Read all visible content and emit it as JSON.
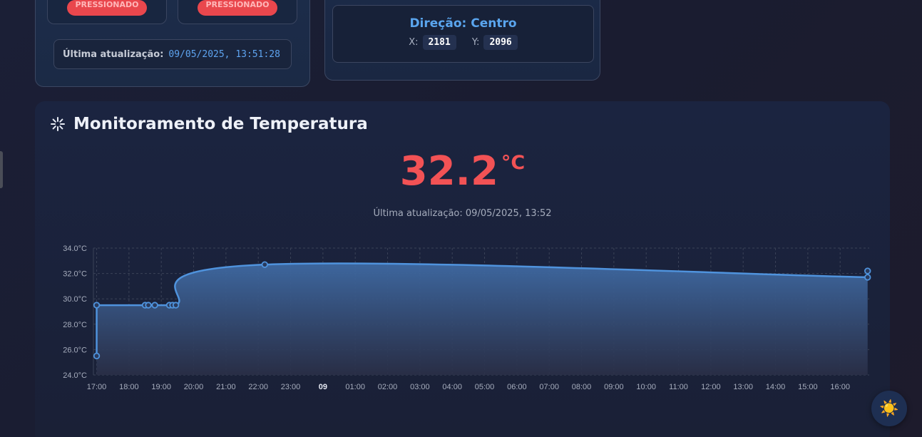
{
  "buttons_card": {
    "button_1_status": "PRESSIONADO",
    "button_2_status": "PRESSIONADO",
    "last_update_label": "Última atualização:",
    "last_update_value": "09/05/2025, 13:51:28"
  },
  "joystick_card": {
    "direction": "Direção: Centro",
    "x_label": "X:",
    "x_value": "2181",
    "y_label": "Y:",
    "y_value": "2096"
  },
  "temperature_card": {
    "title": "Monitoramento de Temperatura",
    "title_icon": "loader-icon",
    "current_value": "32.2",
    "unit": "°C",
    "last_update": "Última atualização: 09/05/2025, 13:52"
  },
  "theme_toggle": {
    "icon": "sun-icon",
    "glyph": "☀️"
  },
  "colors": {
    "accent_blue": "#5aa5ee",
    "temperature_red": "#f25255",
    "pressed_red": "#e9474d",
    "line_blue": "#4f93dd"
  },
  "chart_data": {
    "type": "area",
    "x_axis": "time",
    "y_ticks": [
      "24.0°C",
      "26.0°C",
      "28.0°C",
      "30.0°C",
      "32.0°C",
      "34.0°C"
    ],
    "ylim": [
      24,
      34
    ],
    "x_ticks": [
      "17:00",
      "18:00",
      "19:00",
      "20:00",
      "21:00",
      "22:00",
      "23:00",
      "09",
      "01:00",
      "02:00",
      "03:00",
      "04:00",
      "05:00",
      "06:00",
      "07:00",
      "08:00",
      "09:00",
      "10:00",
      "11:00",
      "12:00",
      "13:00",
      "14:00",
      "15:00",
      "16:00"
    ],
    "xlim_hours": [
      16.9,
      40.9
    ],
    "grid": true,
    "series": [
      {
        "points": [
          {
            "t": 17.0,
            "y": 25.5
          },
          {
            "t": 17.0,
            "y": 29.5
          },
          {
            "t": 18.5,
            "y": 29.5
          },
          {
            "t": 18.6,
            "y": 29.5
          },
          {
            "t": 18.8,
            "y": 29.5
          },
          {
            "t": 19.25,
            "y": 29.5
          },
          {
            "t": 19.35,
            "y": 29.5
          },
          {
            "t": 19.45,
            "y": 29.5
          },
          {
            "t": 22.2,
            "y": 32.7
          },
          {
            "t": 40.85,
            "y": 31.7
          },
          {
            "t": 40.85,
            "y": 32.2
          }
        ]
      }
    ]
  }
}
